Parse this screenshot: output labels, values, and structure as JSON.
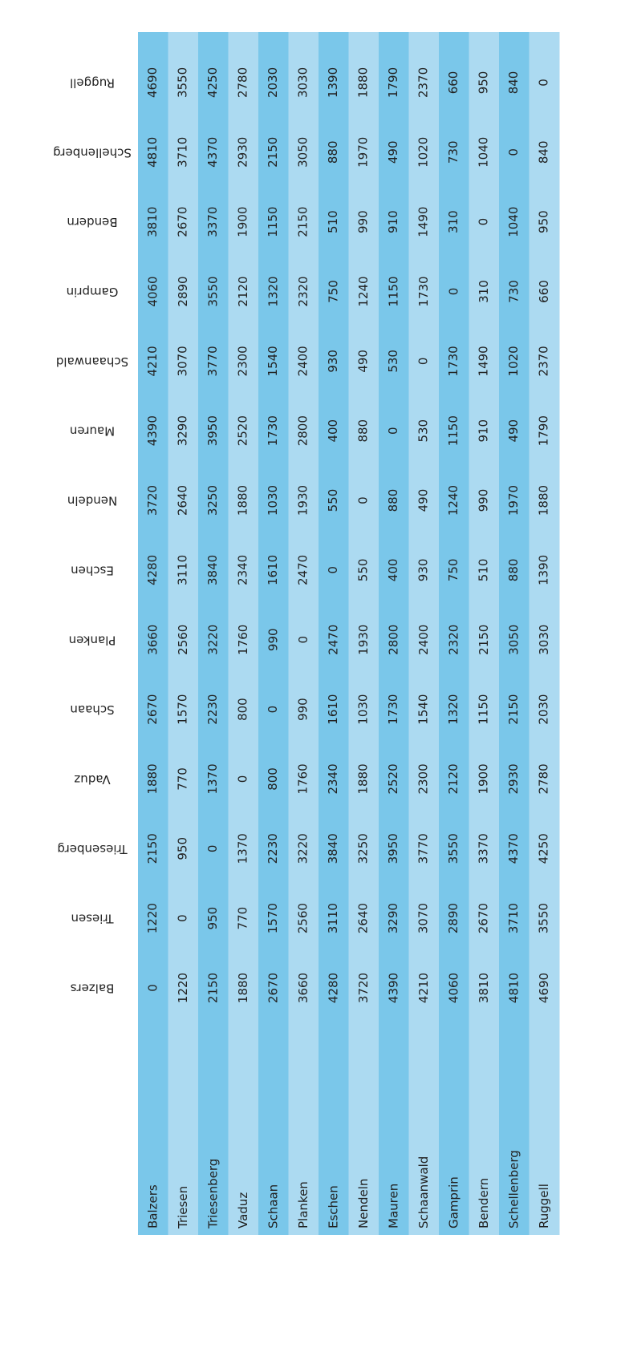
{
  "table": {
    "columns": [
      "Balzers",
      "Triesen",
      "Triesenberg",
      "Vaduz",
      "Schaan",
      "Planken",
      "Eschen",
      "Nendeln",
      "Mauren",
      "Schaanwald",
      "Gamprin",
      "Bendern",
      "Schellenberg",
      "Ruggell"
    ],
    "rows": [
      {
        "label": "Balzers",
        "values": [
          0,
          1220,
          2150,
          1880,
          2670,
          3660,
          4280,
          3720,
          4390,
          4210,
          4060,
          3810,
          4810,
          4690
        ]
      },
      {
        "label": "Triesen",
        "values": [
          1220,
          0,
          950,
          770,
          1570,
          2560,
          3110,
          2640,
          3290,
          3070,
          2890,
          2670,
          3710,
          3550
        ]
      },
      {
        "label": "Triesenberg",
        "values": [
          2150,
          950,
          0,
          1370,
          2230,
          3220,
          3840,
          3250,
          3950,
          3770,
          3550,
          3370,
          4370,
          4250
        ]
      },
      {
        "label": "Vaduz",
        "values": [
          1880,
          770,
          1370,
          0,
          800,
          1760,
          2340,
          1880,
          2520,
          2300,
          2120,
          1900,
          2930,
          2780
        ]
      },
      {
        "label": "Schaan",
        "values": [
          2670,
          1570,
          2230,
          800,
          0,
          990,
          1610,
          1030,
          1730,
          1540,
          1320,
          1150,
          2150,
          2030
        ]
      },
      {
        "label": "Planken",
        "values": [
          3660,
          2560,
          3220,
          1760,
          990,
          0,
          2470,
          1930,
          2800,
          2400,
          2320,
          2150,
          3050,
          3030
        ]
      },
      {
        "label": "Eschen",
        "values": [
          4280,
          3110,
          3840,
          2340,
          1610,
          2470,
          0,
          550,
          400,
          930,
          750,
          510,
          880,
          1390
        ]
      },
      {
        "label": "Nendeln",
        "values": [
          3720,
          2640,
          3250,
          1880,
          1030,
          1930,
          550,
          0,
          880,
          490,
          1240,
          990,
          1970,
          1880
        ]
      },
      {
        "label": "Mauren",
        "values": [
          4390,
          3290,
          3950,
          2520,
          1730,
          2800,
          400,
          880,
          0,
          530,
          1150,
          910,
          490,
          1790
        ]
      },
      {
        "label": "Schaanwald",
        "values": [
          4210,
          3070,
          3770,
          2300,
          1540,
          2400,
          930,
          490,
          530,
          0,
          1730,
          1490,
          1020,
          2370
        ]
      },
      {
        "label": "Gamprin",
        "values": [
          4060,
          2890,
          3550,
          2120,
          1320,
          2320,
          750,
          1240,
          1150,
          1730,
          0,
          310,
          730,
          660
        ]
      },
      {
        "label": "Bendern",
        "values": [
          3810,
          2670,
          3370,
          1900,
          1150,
          2150,
          510,
          990,
          910,
          1490,
          310,
          0,
          1040,
          950
        ]
      },
      {
        "label": "Schellenberg",
        "values": [
          4810,
          3710,
          4370,
          2930,
          2150,
          3050,
          880,
          1970,
          490,
          1020,
          730,
          1040,
          0,
          840
        ]
      },
      {
        "label": "Ruggell",
        "values": [
          4690,
          3550,
          4250,
          2780,
          2030,
          3030,
          1390,
          1880,
          1790,
          2370,
          660,
          950,
          840,
          0
        ]
      }
    ]
  }
}
